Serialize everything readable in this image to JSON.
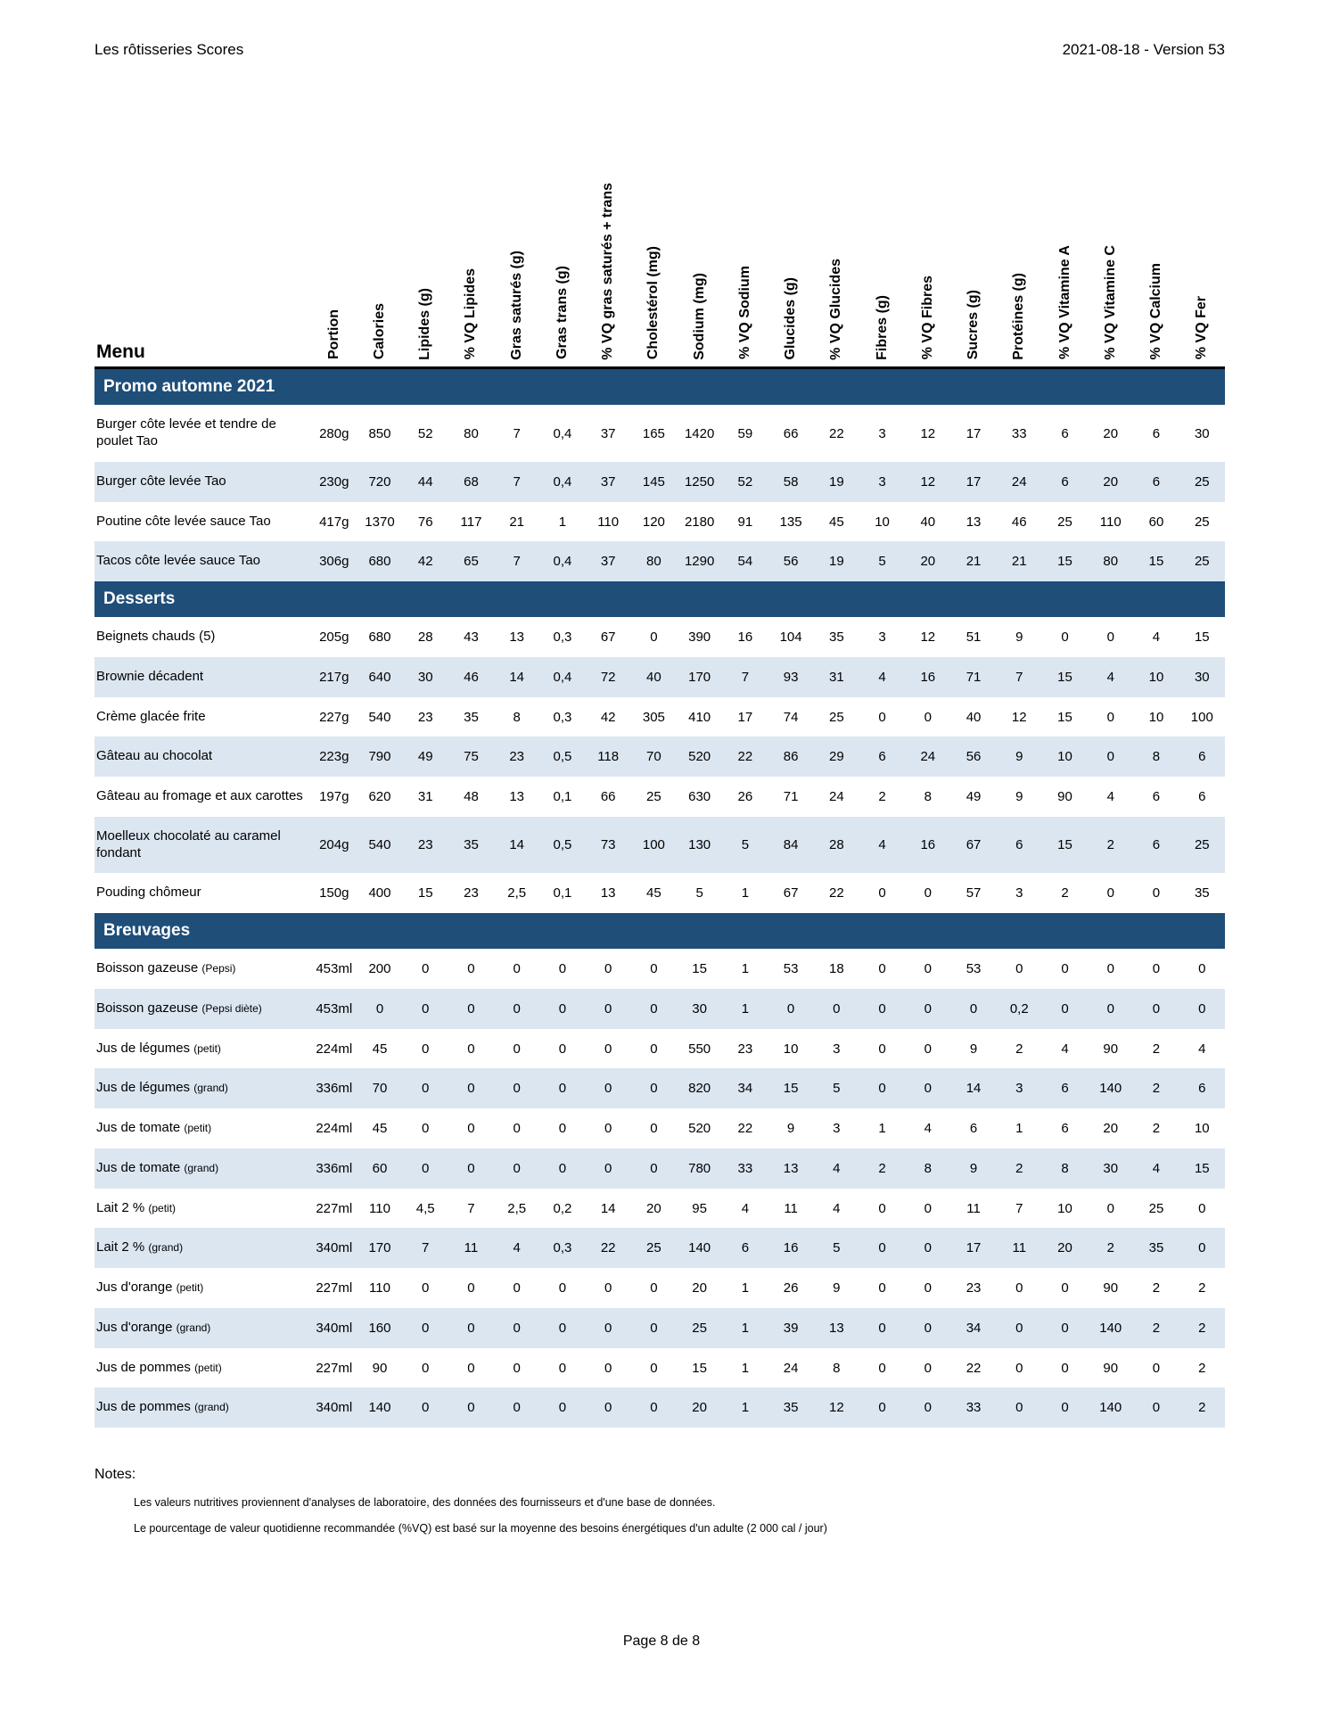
{
  "header": {
    "left": "Les rôtisseries Scores",
    "right": "2021-08-18 - Version 53"
  },
  "table": {
    "menu_label": "Menu",
    "columns": [
      "Portion",
      "Calories",
      "Lipides (g)",
      "% VQ Lipides",
      "Gras saturés (g)",
      "Gras trans (g)",
      "% VQ gras saturés + trans",
      "Cholestérol (mg)",
      "Sodium (mg)",
      "% VQ Sodium",
      "Glucides (g)",
      "% VQ Glucides",
      "Fibres (g)",
      "% VQ Fibres",
      "Sucres (g)",
      "Protéines (g)",
      "% VQ Vitamine A",
      "% VQ Vitamine C",
      "% VQ Calcium",
      "% VQ Fer"
    ],
    "sections": [
      {
        "title": "Promo automne 2021",
        "rows": [
          {
            "name": "Burger côte levée et tendre de poulet Tao",
            "note": "",
            "values": [
              "280g",
              "850",
              "52",
              "80",
              "7",
              "0,4",
              "37",
              "165",
              "1420",
              "59",
              "66",
              "22",
              "3",
              "12",
              "17",
              "33",
              "6",
              "20",
              "6",
              "30"
            ]
          },
          {
            "name": "Burger côte levée Tao",
            "note": "",
            "values": [
              "230g",
              "720",
              "44",
              "68",
              "7",
              "0,4",
              "37",
              "145",
              "1250",
              "52",
              "58",
              "19",
              "3",
              "12",
              "17",
              "24",
              "6",
              "20",
              "6",
              "25"
            ]
          },
          {
            "name": "Poutine côte levée sauce Tao",
            "note": "",
            "values": [
              "417g",
              "1370",
              "76",
              "117",
              "21",
              "1",
              "110",
              "120",
              "2180",
              "91",
              "135",
              "45",
              "10",
              "40",
              "13",
              "46",
              "25",
              "110",
              "60",
              "25"
            ]
          },
          {
            "name": "Tacos côte levée sauce Tao",
            "note": "",
            "values": [
              "306g",
              "680",
              "42",
              "65",
              "7",
              "0,4",
              "37",
              "80",
              "1290",
              "54",
              "56",
              "19",
              "5",
              "20",
              "21",
              "21",
              "15",
              "80",
              "15",
              "25"
            ]
          }
        ]
      },
      {
        "title": "Desserts",
        "rows": [
          {
            "name": "Beignets chauds (5)",
            "note": "",
            "values": [
              "205g",
              "680",
              "28",
              "43",
              "13",
              "0,3",
              "67",
              "0",
              "390",
              "16",
              "104",
              "35",
              "3",
              "12",
              "51",
              "9",
              "0",
              "0",
              "4",
              "15"
            ]
          },
          {
            "name": "Brownie décadent",
            "note": "",
            "values": [
              "217g",
              "640",
              "30",
              "46",
              "14",
              "0,4",
              "72",
              "40",
              "170",
              "7",
              "93",
              "31",
              "4",
              "16",
              "71",
              "7",
              "15",
              "4",
              "10",
              "30"
            ]
          },
          {
            "name": "Crème glacée frite",
            "note": "",
            "values": [
              "227g",
              "540",
              "23",
              "35",
              "8",
              "0,3",
              "42",
              "305",
              "410",
              "17",
              "74",
              "25",
              "0",
              "0",
              "40",
              "12",
              "15",
              "0",
              "10",
              "100"
            ]
          },
          {
            "name": "Gâteau au chocolat",
            "note": "",
            "values": [
              "223g",
              "790",
              "49",
              "75",
              "23",
              "0,5",
              "118",
              "70",
              "520",
              "22",
              "86",
              "29",
              "6",
              "24",
              "56",
              "9",
              "10",
              "0",
              "8",
              "6"
            ]
          },
          {
            "name": "Gâteau au fromage et aux carottes",
            "note": "",
            "values": [
              "197g",
              "620",
              "31",
              "48",
              "13",
              "0,1",
              "66",
              "25",
              "630",
              "26",
              "71",
              "24",
              "2",
              "8",
              "49",
              "9",
              "90",
              "4",
              "6",
              "6"
            ]
          },
          {
            "name": "Moelleux chocolaté au caramel fondant",
            "note": "",
            "values": [
              "204g",
              "540",
              "23",
              "35",
              "14",
              "0,5",
              "73",
              "100",
              "130",
              "5",
              "84",
              "28",
              "4",
              "16",
              "67",
              "6",
              "15",
              "2",
              "6",
              "25"
            ]
          },
          {
            "name": "Pouding chômeur",
            "note": "",
            "values": [
              "150g",
              "400",
              "15",
              "23",
              "2,5",
              "0,1",
              "13",
              "45",
              "5",
              "1",
              "67",
              "22",
              "0",
              "0",
              "57",
              "3",
              "2",
              "0",
              "0",
              "35"
            ]
          }
        ]
      },
      {
        "title": "Breuvages",
        "rows": [
          {
            "name": "Boisson gazeuse",
            "note": "(Pepsi)",
            "values": [
              "453ml",
              "200",
              "0",
              "0",
              "0",
              "0",
              "0",
              "0",
              "15",
              "1",
              "53",
              "18",
              "0",
              "0",
              "53",
              "0",
              "0",
              "0",
              "0",
              "0"
            ]
          },
          {
            "name": "Boisson gazeuse",
            "note": "(Pepsi diète)",
            "values": [
              "453ml",
              "0",
              "0",
              "0",
              "0",
              "0",
              "0",
              "0",
              "30",
              "1",
              "0",
              "0",
              "0",
              "0",
              "0",
              "0,2",
              "0",
              "0",
              "0",
              "0"
            ]
          },
          {
            "name": "Jus de légumes",
            "note": "(petit)",
            "values": [
              "224ml",
              "45",
              "0",
              "0",
              "0",
              "0",
              "0",
              "0",
              "550",
              "23",
              "10",
              "3",
              "0",
              "0",
              "9",
              "2",
              "4",
              "90",
              "2",
              "4"
            ]
          },
          {
            "name": "Jus de légumes",
            "note": "(grand)",
            "values": [
              "336ml",
              "70",
              "0",
              "0",
              "0",
              "0",
              "0",
              "0",
              "820",
              "34",
              "15",
              "5",
              "0",
              "0",
              "14",
              "3",
              "6",
              "140",
              "2",
              "6"
            ]
          },
          {
            "name": "Jus de tomate",
            "note": "(petit)",
            "values": [
              "224ml",
              "45",
              "0",
              "0",
              "0",
              "0",
              "0",
              "0",
              "520",
              "22",
              "9",
              "3",
              "1",
              "4",
              "6",
              "1",
              "6",
              "20",
              "2",
              "10"
            ]
          },
          {
            "name": "Jus de tomate",
            "note": "(grand)",
            "values": [
              "336ml",
              "60",
              "0",
              "0",
              "0",
              "0",
              "0",
              "0",
              "780",
              "33",
              "13",
              "4",
              "2",
              "8",
              "9",
              "2",
              "8",
              "30",
              "4",
              "15"
            ]
          },
          {
            "name": "Lait 2 %",
            "note": "(petit)",
            "values": [
              "227ml",
              "110",
              "4,5",
              "7",
              "2,5",
              "0,2",
              "14",
              "20",
              "95",
              "4",
              "11",
              "4",
              "0",
              "0",
              "11",
              "7",
              "10",
              "0",
              "25",
              "0"
            ]
          },
          {
            "name": "Lait 2 %",
            "note": "(grand)",
            "values": [
              "340ml",
              "170",
              "7",
              "11",
              "4",
              "0,3",
              "22",
              "25",
              "140",
              "6",
              "16",
              "5",
              "0",
              "0",
              "17",
              "11",
              "20",
              "2",
              "35",
              "0"
            ]
          },
          {
            "name": "Jus d'orange",
            "note": "(petit)",
            "values": [
              "227ml",
              "110",
              "0",
              "0",
              "0",
              "0",
              "0",
              "0",
              "20",
              "1",
              "26",
              "9",
              "0",
              "0",
              "23",
              "0",
              "0",
              "90",
              "2",
              "2"
            ]
          },
          {
            "name": "Jus d'orange",
            "note": "(grand)",
            "values": [
              "340ml",
              "160",
              "0",
              "0",
              "0",
              "0",
              "0",
              "0",
              "25",
              "1",
              "39",
              "13",
              "0",
              "0",
              "34",
              "0",
              "0",
              "140",
              "2",
              "2"
            ]
          },
          {
            "name": "Jus de pommes",
            "note": "(petit)",
            "values": [
              "227ml",
              "90",
              "0",
              "0",
              "0",
              "0",
              "0",
              "0",
              "15",
              "1",
              "24",
              "8",
              "0",
              "0",
              "22",
              "0",
              "0",
              "90",
              "0",
              "2"
            ]
          },
          {
            "name": "Jus de pommes",
            "note": "(grand)",
            "values": [
              "340ml",
              "140",
              "0",
              "0",
              "0",
              "0",
              "0",
              "0",
              "20",
              "1",
              "35",
              "12",
              "0",
              "0",
              "33",
              "0",
              "0",
              "140",
              "0",
              "2"
            ]
          }
        ]
      }
    ]
  },
  "notes": {
    "title": "Notes:",
    "lines": [
      "Les valeurs nutritives proviennent d'analyses de laboratoire, des données des fournisseurs et d'une base de données.",
      "Le pourcentage de valeur quotidienne recommandée (%VQ) est basé sur la moyenne des besoins énergétiques d'un adulte (2 000 cal / jour)"
    ]
  },
  "footer": {
    "page": "Page 8 de 8"
  },
  "colors": {
    "section_bar": "#1F4E79",
    "row_stripe": "#DCE6F1",
    "header_rule": "#000000"
  }
}
